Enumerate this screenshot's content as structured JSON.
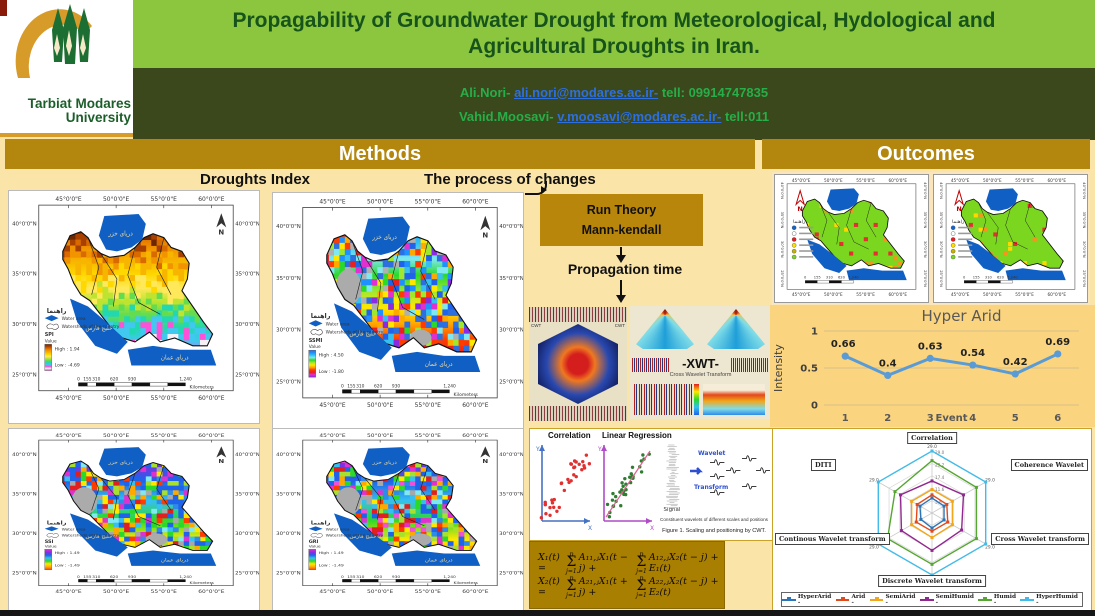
{
  "header": {
    "university_line1": "Tarbiat Modares",
    "university_line2": "University",
    "title": "Propagability of Groundwater Drought from Meteorological, Hydological and Agricultural Droughts in Iran.",
    "contact1": {
      "name": "Ali.Nori- ",
      "email": "ali.nori@modares.ac.ir-",
      "tail": " tell: 09914747835"
    },
    "contact2": {
      "name": "Vahid.Moosavi- ",
      "email": "v.moosavi@modares.ac.ir-",
      "tail": " tell:011"
    }
  },
  "sections": {
    "methods": "Methods",
    "outcomes": "Outcomes"
  },
  "subheads": {
    "droughts_index": "Droughts Index",
    "process": "The process of changes"
  },
  "flow": {
    "box_line1": "Run Theory",
    "box_line2": "Mann-kendall",
    "propagation": "Propagation time"
  },
  "xwt": {
    "label": "-XWT-",
    "caption": "Cross Wavelet Transform",
    "cwt_tag": "CWT"
  },
  "figure1": {
    "correlation": "Correlation",
    "linear_regression": "Linear Regression",
    "y": "Y",
    "x": "X",
    "wavelet": "Wavelet",
    "transform": "Transform",
    "signal": "Signal",
    "subcaption": "Constituent wavelets of different scales and positions",
    "caption": "Figure 1. Scaling and positioning by CWT."
  },
  "equations": {
    "sum_sup": "p",
    "sum_sub": "j=1",
    "eq1": {
      "lhs": "X₁(t) =",
      "t1": "A₁₁,ⱼX₁(t − j) +",
      "t2": "A₁₂,ⱼX₂(t − j) + E₁(t)"
    },
    "eq2": {
      "lhs": "X₂(t) =",
      "t1": "A₂₁,ⱼX₁(t + j) +",
      "t2": "A₂₂,ⱼX₂(t − j) + E₂(t)"
    }
  },
  "maps": {
    "lon_labels": [
      "45°0'0\"E",
      "50°0'0\"E",
      "55°0'0\"E",
      "60°0'0\"E"
    ],
    "lat_labels": [
      "40°0'0\"N",
      "35°0'0\"N",
      "30°0'0\"N",
      "25°0'0\"N"
    ],
    "legend_title": "راهنما",
    "legend_water": "Water area",
    "legend_watershed": "Watersheds of the country",
    "value_label": "Value",
    "north": "N",
    "scale_ticks": [
      "0",
      "155",
      "310",
      "620",
      "930",
      "1,240"
    ],
    "scale_unit": "Kilometers",
    "sea_caspian": "دریای خزر",
    "sea_gulf": "خلیج فارس",
    "sea_oman": "دریای عمان",
    "panels": [
      {
        "index_label": "SPI",
        "high": "High : 1.94",
        "low": "Low : -4.69",
        "style": "banded",
        "ramp": [
          "#6E2600",
          "#A84000",
          "#D96A00",
          "#F29400",
          "#F7B500",
          "#FFD800",
          "#FFE95A",
          "#BFE430",
          "#64DC50",
          "#22D8B0",
          "#40C8F0",
          "#FF50D8",
          "#F5F0F5",
          "#D840C0"
        ]
      },
      {
        "index_label": "SSMI",
        "high": "High : 4.50",
        "low": "Low : -1.80",
        "style": "mix",
        "ramp": [
          "#2E6FE0",
          "#1E90FF",
          "#35C0F0",
          "#7FE8F0",
          "#2BD92B",
          "#A0E830",
          "#FFE800",
          "#FFA800",
          "#FF3C00",
          "#E82020",
          "#E030D0",
          "#8A2BE2"
        ],
        "noise": [
          "#2E6FE0",
          "#1E90FF",
          "#35C0F0",
          "#7FE8F0",
          "#2BD92B",
          "#A0E830",
          "#FFE800",
          "#FFA800",
          "#FF3C00",
          "#E82020",
          "#E030D0",
          "#8A2BE2",
          "#B0B0B0",
          "#2E6FE0",
          "#1E63E9"
        ]
      },
      {
        "index_label": "SSI",
        "high": "High : 1.49",
        "low": "Low : -1.49",
        "style": "mix",
        "ramp": [
          "#E030D0",
          "#8A2BE2",
          "#1E63E9",
          "#35C0F0",
          "#2BD92B",
          "#FFE800",
          "#FFA800",
          "#FF3C00"
        ],
        "noise": [
          "#1E63E9",
          "#1E63E9",
          "#2E8BE8",
          "#35C0F0",
          "#7FE8F0",
          "#2BD92B",
          "#A8E030",
          "#FFE800",
          "#FFA800",
          "#FF3C00",
          "#E02020",
          "#E030D0",
          "#A8A8A8",
          "#1E63E9"
        ]
      },
      {
        "index_label": "GRI",
        "high": "High : 1.49",
        "low": "Low : -1.49",
        "style": "mix",
        "ramp": [
          "#E030D0",
          "#8A2BE2",
          "#1E63E9",
          "#35C0F0",
          "#2BD92B",
          "#FFE800",
          "#FFA800",
          "#FF3C00"
        ],
        "noise": [
          "#1E63E9",
          "#1E63E9",
          "#2E8BE8",
          "#35C0F0",
          "#7FE8F0",
          "#2BD92B",
          "#A8E030",
          "#FFE800",
          "#FFA800",
          "#FF3C00",
          "#E02020",
          "#E030D0",
          "#A8A8A8",
          "#F050D8",
          "#1E63E9"
        ]
      }
    ]
  },
  "outcome_maps": {
    "legend_title": "راهنما",
    "north": "N",
    "base_color": "#7AD61E",
    "patch_colors": [
      "#F7941D",
      "#FFD800",
      "#E03030"
    ],
    "dot_colors": [
      "#1464C8",
      "#FFFFFF",
      "#E02020",
      "#FFE000",
      "#C8B400",
      "#7AD61E"
    ]
  },
  "chart_data": [
    {
      "type": "line",
      "title": "Hyper Arid",
      "xlabel": "Event",
      "ylabel": "Intensity",
      "categories": [
        "1",
        "2",
        "3",
        "4",
        "5",
        "6"
      ],
      "values": [
        0.66,
        0.4,
        0.63,
        0.54,
        0.42,
        0.69
      ],
      "labels": [
        "0.66",
        "0.4",
        "0.63",
        "0.54",
        "0.42",
        "0.69"
      ],
      "ylim": [
        0,
        1
      ],
      "yticks": [
        "0",
        "0.5",
        "1"
      ],
      "line_color": "#5B9BD5",
      "grid": true,
      "legend_position": "none"
    },
    {
      "type": "radar",
      "categories": [
        "Correlation",
        "Coherence Wavelet",
        "Cross Wavelet transform",
        "Discrete Wavelet transform",
        "Continous Wavelet transform",
        "DITI"
      ],
      "max": 29,
      "ring_ticks": [
        "5.8",
        "11.6",
        "17.4",
        "23.2",
        "29.0"
      ],
      "outer_tick": "29.0",
      "series": [
        {
          "name": "HyperArid",
          "color": "#2E75B6",
          "values": [
            7,
            6.5,
            6.5,
            7,
            6,
            6.5
          ]
        },
        {
          "name": "Arid",
          "color": "#E2491B",
          "values": [
            8.5,
            8,
            8.5,
            8.5,
            8.5,
            8
          ]
        },
        {
          "name": "SemiArid",
          "color": "#F2A619",
          "values": [
            11,
            11,
            11,
            11.5,
            11,
            11
          ]
        },
        {
          "name": "SemiHumid",
          "color": "#91288F",
          "values": [
            15,
            17,
            16,
            17.5,
            16.5,
            17
          ]
        },
        {
          "name": "Humid",
          "color": "#56A632",
          "values": [
            24.5,
            24,
            24,
            24,
            24,
            20
          ]
        },
        {
          "name": "HyperHumid",
          "color": "#41BBE8",
          "values": [
            29,
            29,
            29,
            29,
            29,
            29
          ]
        }
      ],
      "legend_position": "bottom"
    }
  ]
}
